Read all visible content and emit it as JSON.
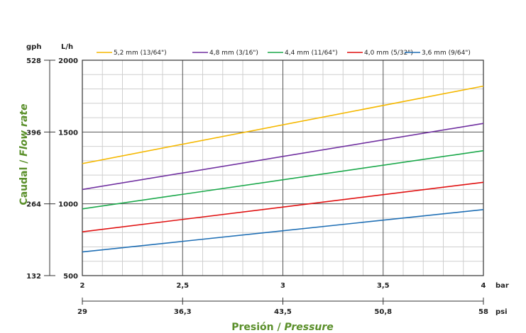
{
  "chart_data": {
    "type": "line",
    "title": "",
    "xlabel_es": "Presión",
    "xlabel_sep": " / ",
    "xlabel_en": "Pressure",
    "ylabel_es": "Caudal",
    "ylabel_sep": " / ",
    "ylabel_en": "Flow rate",
    "x_unit_bar": "bar",
    "x_unit_psi": "psi",
    "y_unit_lh": "L/h",
    "y_unit_gph": "gph",
    "xlim": [
      2,
      4
    ],
    "ylim": [
      500,
      2000
    ],
    "x_ticks_bar": [
      2,
      2.5,
      3,
      3.5,
      4
    ],
    "x_ticks_bar_labels": [
      "2",
      "2,5",
      "3",
      "3,5",
      "4"
    ],
    "x_ticks_psi_labels": [
      "29",
      "36,3",
      "43,5",
      "50,8",
      "58"
    ],
    "y_ticks_lh": [
      500,
      1000,
      1500,
      2000
    ],
    "y_ticks_lh_labels": [
      "500",
      "1000",
      "1500",
      "2000"
    ],
    "y_ticks_gph_labels": [
      "132",
      "264",
      "396",
      "528"
    ],
    "grid": true,
    "legend_position": "top",
    "series": [
      {
        "name": "5,2 mm (13/64\")",
        "color": "#f5b800",
        "x": [
          2,
          4
        ],
        "y": [
          1280,
          1820
        ]
      },
      {
        "name": "4,8 mm (3/16\")",
        "color": "#7030a0",
        "x": [
          2,
          4
        ],
        "y": [
          1100,
          1560
        ]
      },
      {
        "name": "4,4 mm (11/64\")",
        "color": "#1aa84a",
        "x": [
          2,
          4
        ],
        "y": [
          965,
          1370
        ]
      },
      {
        "name": "4,0 mm (5/32\")",
        "color": "#e01010",
        "x": [
          2,
          4
        ],
        "y": [
          805,
          1150
        ]
      },
      {
        "name": "3,6 mm (9/64\")",
        "color": "#1f6fb5",
        "x": [
          2,
          4
        ],
        "y": [
          665,
          960
        ]
      }
    ]
  }
}
